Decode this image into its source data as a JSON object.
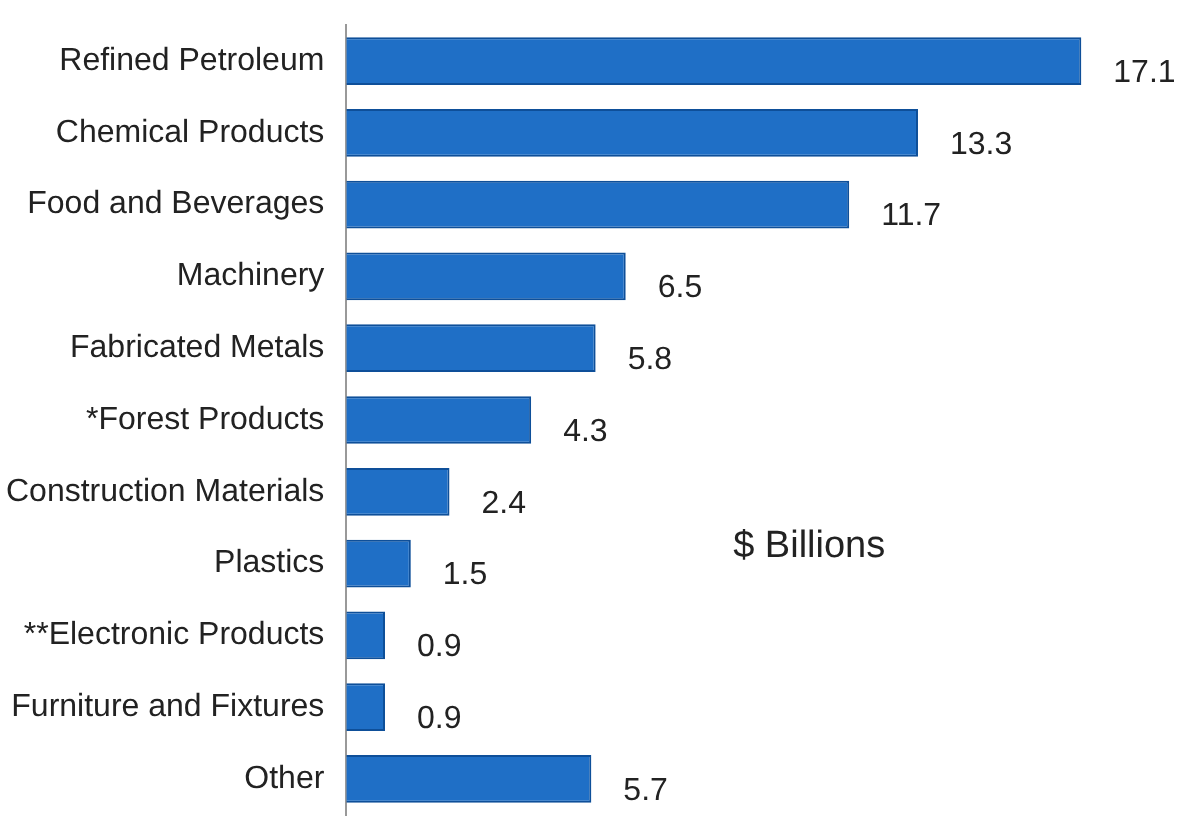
{
  "chart_data": {
    "type": "bar",
    "orientation": "horizontal",
    "categories": [
      "Refined Petroleum",
      "Chemical Products",
      "Food and Beverages",
      "Machinery",
      "Fabricated Metals",
      "*Forest Products",
      "Construction Materials",
      "Plastics",
      "**Electronic Products",
      "Furniture and Fixtures",
      "Other"
    ],
    "values": [
      17.1,
      13.3,
      11.7,
      6.5,
      5.8,
      4.3,
      2.4,
      1.5,
      0.9,
      0.9,
      5.7
    ],
    "color": "#1f6fc6",
    "data_labels": true,
    "annotations": [
      "$ Billions"
    ]
  }
}
